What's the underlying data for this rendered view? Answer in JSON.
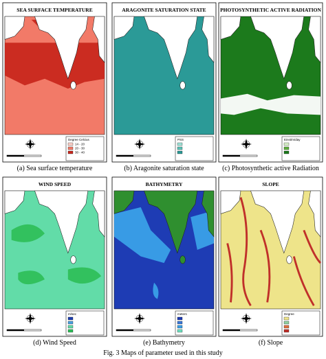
{
  "figure": {
    "caption": "Fig. 3 Maps of parameter used in this study",
    "panels": [
      {
        "title": "SEA SURFACE TEMPERATURE",
        "caption": "(a) Sea surface temperature",
        "ocean": "#f27a68",
        "land": "#ffffff",
        "patch": "#c8281e",
        "legend": {
          "title": "Degree Celcius",
          "items": [
            {
              "label": "14 - 20",
              "color": "#fcd0c8"
            },
            {
              "label": "20 - 30",
              "color": "#f27a68"
            },
            {
              "label": "30 - 40",
              "color": "#c8281e"
            }
          ]
        }
      },
      {
        "title": "ARAGONITE SATURATION STATE",
        "caption": "(b) Aragonite saturation state",
        "ocean": "#2b9a97",
        "land": "#ffffff",
        "patch": "#2b9a97",
        "legend": {
          "title": "PSS",
          "items": [
            {
              "color": "#9fe3d8"
            },
            {
              "color": "#5cc3b8"
            },
            {
              "color": "#2b9a97"
            }
          ]
        }
      },
      {
        "title": "PHOTOSYNTHETIC ACTIVE RADIATION",
        "caption": "(c) Photosynthetic active Radiation",
        "ocean": "#1c7a1c",
        "land": "#ffffff",
        "patch": "#ffffff",
        "legend": {
          "title": "Einst/m/day",
          "items": [
            {
              "color": "#d8f0c8"
            },
            {
              "color": "#60b040"
            },
            {
              "color": "#1c7a1c"
            }
          ]
        }
      },
      {
        "title": "WIND SPEED",
        "caption": "(d) Wind Speed",
        "ocean": "#62dca8",
        "land": "#ffffff",
        "patch": "#2fbf5a",
        "legend": {
          "title": "m/sec",
          "items": [
            {
              "color": "#1f3fb0"
            },
            {
              "color": "#4aa0e0"
            },
            {
              "color": "#62dca8"
            },
            {
              "color": "#2fbf5a"
            }
          ]
        }
      },
      {
        "title": "BATHYMETRY",
        "caption": "(e) Bathymetry",
        "ocean": "#1e3cb4",
        "land": "#2f8f2f",
        "patch": "#3aa0e8",
        "legend": {
          "title": "meters",
          "items": [
            {
              "color": "#1e3cb4"
            },
            {
              "color": "#3a78d8"
            },
            {
              "color": "#3aa0e8"
            },
            {
              "color": "#70e0c0"
            }
          ]
        }
      },
      {
        "title": "SLOPE",
        "caption": "(f) Slope",
        "ocean": "#eee48a",
        "land": "#ffffff",
        "patch": "#c0302a",
        "legend": {
          "title": "Degree",
          "items": [
            {
              "color": "#eee48a"
            },
            {
              "color": "#8fd0a0"
            },
            {
              "color": "#e07040"
            },
            {
              "color": "#c0302a"
            }
          ]
        }
      }
    ]
  }
}
